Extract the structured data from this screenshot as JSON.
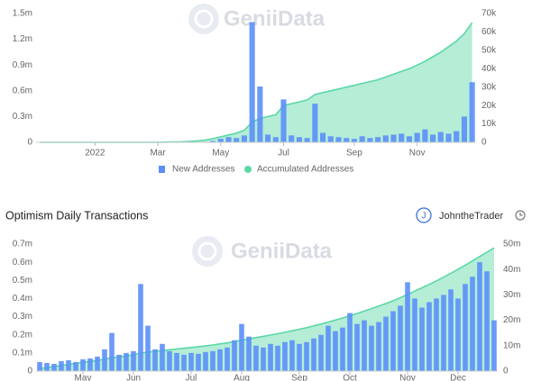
{
  "chart_data": [
    {
      "type": "bar",
      "watermark": "GeniiData",
      "categories": [
        null,
        null,
        null,
        null,
        null,
        null,
        null,
        "2022",
        null,
        null,
        null,
        null,
        null,
        null,
        null,
        "Mar",
        null,
        null,
        null,
        null,
        null,
        null,
        null,
        "May",
        null,
        null,
        null,
        null,
        null,
        null,
        null,
        "Jul",
        null,
        null,
        null,
        null,
        null,
        null,
        null,
        null,
        "Sep",
        null,
        null,
        null,
        null,
        null,
        null,
        null,
        "Nov",
        null,
        null,
        null,
        null,
        null,
        null,
        null
      ],
      "series": [
        {
          "name": "New Addresses",
          "type": "bar",
          "axis": "y",
          "color": "#5b8ff9",
          "values": [
            0,
            0,
            0,
            0,
            0,
            0,
            0,
            0,
            0,
            0,
            0,
            0,
            0,
            0,
            0,
            0,
            0,
            0,
            0,
            0,
            2000,
            5000,
            15000,
            40000,
            60000,
            50000,
            80000,
            1400000,
            650000,
            90000,
            60000,
            500000,
            80000,
            60000,
            50000,
            450000,
            110000,
            70000,
            60000,
            50000,
            40000,
            70000,
            50000,
            60000,
            80000,
            90000,
            100000,
            70000,
            110000,
            150000,
            90000,
            120000,
            100000,
            130000,
            300000,
            700000
          ]
        },
        {
          "name": "Accumulated Addresses",
          "type": "area",
          "axis": "y2",
          "color": "#5ad8a6",
          "values": [
            0,
            0,
            0,
            0,
            0,
            0,
            0,
            0,
            0,
            0,
            0,
            0,
            0,
            0,
            0,
            0,
            100,
            200,
            300,
            500,
            800,
            1200,
            2000,
            3000,
            4000,
            5000,
            6500,
            11000,
            13000,
            14000,
            15000,
            20000,
            21000,
            22000,
            23000,
            26000,
            27000,
            28000,
            29000,
            30000,
            31000,
            32000,
            33000,
            34000,
            35500,
            37000,
            38500,
            40000,
            42000,
            44000,
            46500,
            49000,
            52000,
            55000,
            59000,
            65000
          ]
        }
      ],
      "ylim": [
        0,
        1500000
      ],
      "yticks": [
        0,
        {
          "value": 300000,
          "label": "0.3m"
        },
        {
          "value": 600000,
          "label": "0.6m"
        },
        {
          "value": 900000,
          "label": "0.9m"
        },
        {
          "value": 1200000,
          "label": "1.2m"
        },
        {
          "value": 1500000,
          "label": "1.5m"
        }
      ],
      "y2lim": [
        0,
        70000
      ],
      "y2ticks": [
        0,
        {
          "value": 10000,
          "label": "10k"
        },
        {
          "value": 20000,
          "label": "20k"
        },
        {
          "value": 30000,
          "label": "30k"
        },
        {
          "value": 40000,
          "label": "40k"
        },
        {
          "value": 50000,
          "label": "50k"
        },
        {
          "value": 60000,
          "label": "60k"
        },
        {
          "value": 70000,
          "label": "70k"
        }
      ],
      "grid": false
    },
    {
      "type": "bar",
      "title": "Optimism Daily Transactions",
      "author_initial": "J",
      "author": "JohntheTrader",
      "watermark": "GeniiData",
      "categories": [
        null,
        null,
        null,
        null,
        null,
        null,
        "May",
        null,
        null,
        null,
        null,
        null,
        null,
        "Jun",
        null,
        null,
        null,
        null,
        null,
        null,
        null,
        "Jul",
        null,
        null,
        null,
        null,
        null,
        null,
        "Aug",
        null,
        null,
        null,
        null,
        null,
        null,
        null,
        "Sep",
        null,
        null,
        null,
        null,
        null,
        null,
        "Oct",
        null,
        null,
        null,
        null,
        null,
        null,
        null,
        "Nov",
        null,
        null,
        null,
        null,
        null,
        null,
        "Dec",
        null,
        null,
        null,
        null,
        null
      ],
      "series": [
        {
          "type": "bar",
          "axis": "y",
          "color": "#5b8ff9",
          "values": [
            50000,
            45000,
            40000,
            55000,
            60000,
            50000,
            65000,
            70000,
            80000,
            120000,
            210000,
            90000,
            100000,
            110000,
            480000,
            250000,
            120000,
            150000,
            110000,
            100000,
            90000,
            100000,
            95000,
            105000,
            110000,
            120000,
            130000,
            170000,
            260000,
            190000,
            140000,
            130000,
            150000,
            140000,
            160000,
            170000,
            150000,
            160000,
            180000,
            200000,
            250000,
            220000,
            240000,
            320000,
            260000,
            280000,
            250000,
            270000,
            300000,
            330000,
            360000,
            490000,
            400000,
            350000,
            380000,
            400000,
            420000,
            450000,
            400000,
            480000,
            520000,
            600000,
            550000,
            280000
          ]
        },
        {
          "type": "area",
          "axis": "y2",
          "color": "#5ad8a6",
          "values": [
            1000000,
            1400000,
            1800000,
            2200000,
            2600000,
            3000000,
            3400000,
            3800000,
            4200000,
            4700000,
            5200000,
            5600000,
            6000000,
            6400000,
            7100000,
            7500000,
            7800000,
            8100000,
            8400000,
            8700000,
            9000000,
            9300000,
            9600000,
            9900000,
            10300000,
            10700000,
            11100000,
            11600000,
            12200000,
            12700000,
            13200000,
            13700000,
            14200000,
            14700000,
            15300000,
            15900000,
            16500000,
            17100000,
            17800000,
            18500000,
            19300000,
            20100000,
            20900000,
            21800000,
            22700000,
            23600000,
            24600000,
            25600000,
            26600000,
            27700000,
            28900000,
            30200000,
            31500000,
            32800000,
            34100000,
            35500000,
            37000000,
            38500000,
            40100000,
            41700000,
            43400000,
            45100000,
            46800000,
            48500000
          ]
        }
      ],
      "ylim": [
        0,
        700000
      ],
      "yticks": [
        0,
        {
          "value": 100000,
          "label": "0.1m"
        },
        {
          "value": 200000,
          "label": "0.2m"
        },
        {
          "value": 300000,
          "label": "0.3m"
        },
        {
          "value": 400000,
          "label": "0.4m"
        },
        {
          "value": 500000,
          "label": "0.5m"
        },
        {
          "value": 600000,
          "label": "0.6m"
        },
        {
          "value": 700000,
          "label": "0.7m"
        }
      ],
      "y2lim": [
        0,
        50000000
      ],
      "y2ticks": [
        0,
        {
          "value": 10000000,
          "label": "10m"
        },
        {
          "value": 20000000,
          "label": "20m"
        },
        {
          "value": 30000000,
          "label": "30m"
        },
        {
          "value": 40000000,
          "label": "40m"
        },
        {
          "value": 50000000,
          "label": "50m"
        }
      ],
      "grid": false
    }
  ]
}
